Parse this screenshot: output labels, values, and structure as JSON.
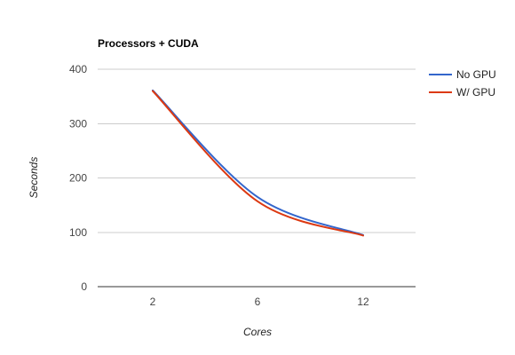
{
  "chart_data": {
    "type": "line",
    "title": "Processors + CUDA",
    "xlabel": "Cores",
    "ylabel": "Seconds",
    "categories": [
      "2",
      "6",
      "12"
    ],
    "y_ticks": [
      "400",
      "300",
      "200",
      "100",
      "0"
    ],
    "ylim": [
      0,
      400
    ],
    "series": [
      {
        "name": "No GPU",
        "values": [
          361,
          165,
          95
        ],
        "color": "#3366cc"
      },
      {
        "name": "W/ GPU",
        "values": [
          360,
          157,
          94
        ],
        "color": "#dc3912"
      }
    ],
    "grid": true,
    "legend": "right"
  }
}
